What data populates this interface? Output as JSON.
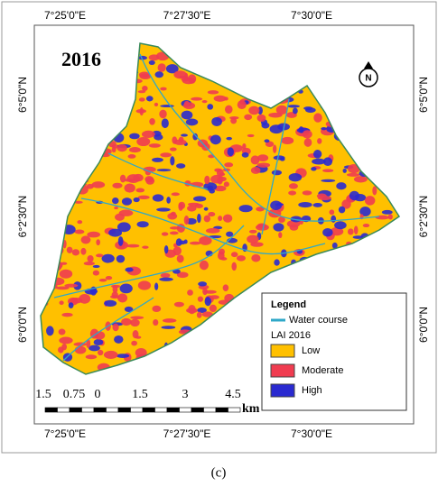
{
  "map": {
    "title": "2016",
    "top_labels": [
      "7°25'0\"E",
      "7°27'30\"E",
      "7°30'0\"E"
    ],
    "bottom_labels": [
      "7°25'0\"E",
      "7°27'30\"E",
      "7°30'0\"E"
    ],
    "left_labels": [
      "6°5'0\"N",
      "6°2'30\"N",
      "6°0'0\"N"
    ],
    "right_labels": [
      "6°5'0\"N",
      "6°2'30\"N",
      "6°0'0\"N"
    ],
    "north": "N",
    "legend": {
      "title": "Legend",
      "water": "Water course",
      "water_color": "#2fa8c8",
      "lai_title": "LAI 2016",
      "classes": [
        {
          "label": "Low",
          "color": "#ffc000"
        },
        {
          "label": "Moderate",
          "color": "#f03c50"
        },
        {
          "label": "High",
          "color": "#2a2ad0"
        }
      ]
    },
    "scale": {
      "labels": [
        "1.5",
        "0.75",
        "0",
        "1.5",
        "3",
        "4.5"
      ],
      "unit": "km"
    },
    "caption": "(c)"
  }
}
